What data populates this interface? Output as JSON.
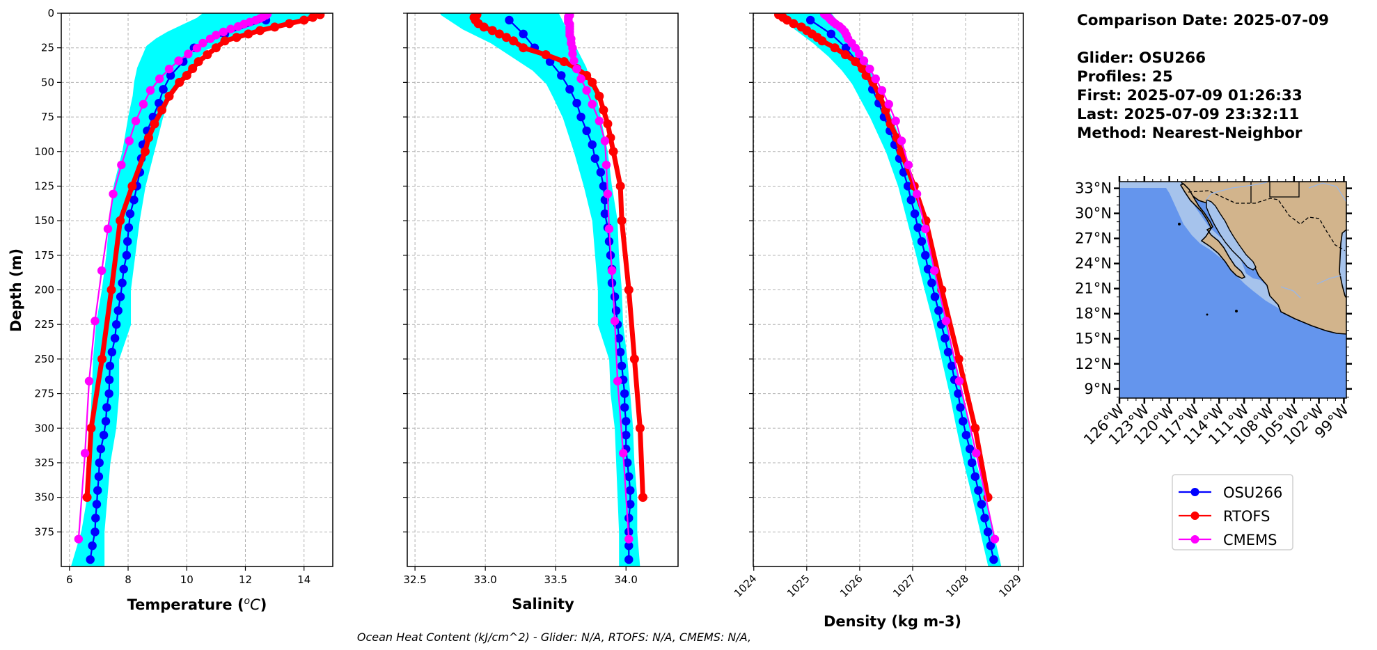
{
  "figure": {
    "footer_text": "Ocean Heat Content (kJ/cm^2) - Glider: N/A,  RTOFS: N/A,  CMEMS: N/A,",
    "info": {
      "comparison_date": "Comparison Date: 2025-07-09",
      "glider": "Glider: OSU266",
      "profiles": "Profiles: 25",
      "first": "First: 2025-07-09 01:26:33",
      "last": "Last: 2025-07-09 23:32:11",
      "method": "Method: Nearest-Neighbor"
    },
    "map": {
      "lat_labels": [
        "33°N",
        "30°N",
        "27°N",
        "24°N",
        "21°N",
        "18°N",
        "15°N",
        "12°N",
        "9°N"
      ],
      "lat_values": [
        33,
        30,
        27,
        24,
        21,
        18,
        15,
        12,
        9
      ],
      "lon_labels": [
        "126°W",
        "123°W",
        "120°W",
        "117°W",
        "114°W",
        "111°W",
        "108°W",
        "105°W",
        "102°W",
        "99°W"
      ],
      "lon_values": [
        -126,
        -123,
        -120,
        -117,
        -114,
        -111,
        -108,
        -105,
        -102,
        -99
      ],
      "extent": {
        "lon_min": -126.0,
        "lon_max": -98.7,
        "lat_min": 7.9,
        "lat_max": 33.8
      },
      "colors": {
        "ocean": "#6495ed",
        "shelf": "#a6c3ec",
        "land": "#d2b48c",
        "coast": "#000000",
        "border": "#000000",
        "river": "#9ab7e6"
      }
    },
    "legend": {
      "position": "below map",
      "entries": [
        {
          "label": "OSU266",
          "color": "#0000ff"
        },
        {
          "label": "RTOFS",
          "color": "#ff0000"
        },
        {
          "label": "CMEMS",
          "color": "#ff00ff"
        }
      ]
    }
  },
  "chart_data": [
    {
      "type": "line",
      "id": "temperature",
      "title": "",
      "xlabel_main": "Temperature (",
      "xlabel_unit_sup": "o",
      "xlabel_unit": "C",
      "xlabel_close": ")",
      "ylabel": "Depth (m)",
      "xlim": [
        5.72,
        14.98
      ],
      "ylim": [
        400,
        0
      ],
      "xticks": [
        6,
        8,
        10,
        12,
        14
      ],
      "xtick_labels": [
        "6",
        "8",
        "10",
        "12",
        "14"
      ],
      "yticks": [
        0,
        25,
        50,
        75,
        100,
        125,
        150,
        175,
        200,
        225,
        250,
        275,
        300,
        325,
        350,
        375
      ],
      "ytick_labels": [
        "0",
        "25",
        "50",
        "75",
        "100",
        "125",
        "150",
        "175",
        "200",
        "225",
        "250",
        "275",
        "300",
        "325",
        "350",
        "375"
      ],
      "grid": true,
      "glider_profiles_envelope": {
        "name": "OSU266 individual profiles",
        "color": "#00ffff",
        "depth": [
          0,
          5,
          10,
          15,
          20,
          25,
          30,
          35,
          40,
          45,
          50,
          60,
          75,
          100,
          125,
          150,
          175,
          200,
          225,
          250,
          275,
          300,
          325,
          350,
          375,
          400
        ],
        "min": [
          10.7,
          10.4,
          9.9,
          9.4,
          9.0,
          8.7,
          8.6,
          8.5,
          8.4,
          8.35,
          8.3,
          8.25,
          8.1,
          7.9,
          7.6,
          7.45,
          7.35,
          7.2,
          7.0,
          6.9,
          6.85,
          6.8,
          6.75,
          6.7,
          6.5,
          6.15
        ],
        "max": [
          14.2,
          13.4,
          12.8,
          12.0,
          11.2,
          10.6,
          10.4,
          10.2,
          10.1,
          9.9,
          9.6,
          9.35,
          9.1,
          8.8,
          8.5,
          8.3,
          8.15,
          8.0,
          8.0,
          7.6,
          7.6,
          7.5,
          7.3,
          7.2,
          7.1,
          7.1
        ]
      },
      "series": [
        {
          "name": "OSU266",
          "color": "#0000ff",
          "depth": [
            5,
            15,
            25,
            35,
            45,
            55,
            65,
            75,
            85,
            95,
            105,
            115,
            125,
            135,
            145,
            155,
            165,
            175,
            185,
            195,
            205,
            215,
            225,
            235,
            245,
            255,
            265,
            275,
            285,
            295,
            305,
            315,
            325,
            335,
            345,
            355,
            365,
            375,
            385,
            395
          ],
          "values": [
            12.7,
            11.3,
            10.25,
            9.88,
            9.45,
            9.2,
            9.05,
            8.85,
            8.65,
            8.5,
            8.45,
            8.4,
            8.3,
            8.2,
            8.07,
            8.02,
            7.98,
            7.95,
            7.85,
            7.8,
            7.74,
            7.66,
            7.6,
            7.55,
            7.45,
            7.38,
            7.36,
            7.35,
            7.27,
            7.24,
            7.17,
            7.07,
            7.02,
            7.0,
            6.96,
            6.93,
            6.89,
            6.87,
            6.78,
            6.71
          ]
        },
        {
          "name": "RTOFS",
          "color": "#ff0000",
          "depth": [
            1,
            3,
            5,
            7.5,
            10,
            12.5,
            15,
            17.5,
            20,
            25,
            30,
            35,
            40,
            45,
            50,
            60,
            70,
            80,
            90,
            100,
            125,
            150,
            200,
            250,
            300,
            350
          ],
          "values": [
            14.55,
            14.3,
            14.0,
            13.5,
            13.0,
            12.5,
            12.1,
            11.7,
            11.3,
            11.0,
            10.7,
            10.4,
            10.2,
            10.0,
            9.75,
            9.4,
            9.15,
            8.9,
            8.7,
            8.58,
            8.14,
            7.73,
            7.43,
            7.11,
            6.74,
            6.6
          ]
        },
        {
          "name": "CMEMS",
          "color": "#ff00ff",
          "depth": [
            0.5,
            1.5,
            2.6,
            3.8,
            5.1,
            6.4,
            7.9,
            9.6,
            11.4,
            13.5,
            15.8,
            18.5,
            21.6,
            25.2,
            29.4,
            34.4,
            40.3,
            47.4,
            55.8,
            65.8,
            77.9,
            92.3,
            109.7,
            130.7,
            155.9,
            186.1,
            222.5,
            266.0,
            318.1,
            380.2
          ],
          "values": [
            12.75,
            12.7,
            12.6,
            12.5,
            12.35,
            12.15,
            11.95,
            11.75,
            11.5,
            11.25,
            11.0,
            10.8,
            10.55,
            10.35,
            10.05,
            9.72,
            9.4,
            9.07,
            8.76,
            8.52,
            8.26,
            8.04,
            7.77,
            7.49,
            7.31,
            7.1,
            6.87,
            6.67,
            6.53,
            6.31
          ]
        }
      ]
    },
    {
      "type": "line",
      "id": "salinity",
      "title": "",
      "xlabel": "Salinity",
      "ylabel": "",
      "xlim": [
        32.445,
        34.37
      ],
      "ylim": [
        400,
        0
      ],
      "xticks": [
        32.5,
        33.0,
        33.5,
        34.0
      ],
      "xtick_labels": [
        "32.5",
        "33.0",
        "33.5",
        "34.0"
      ],
      "yticks": [
        0,
        25,
        50,
        75,
        100,
        125,
        150,
        175,
        200,
        225,
        250,
        275,
        300,
        325,
        350,
        375
      ],
      "grid": true,
      "glider_profiles_envelope": {
        "name": "OSU266 individual profiles",
        "color": "#00ffff",
        "depth": [
          0,
          10,
          20,
          30,
          40,
          50,
          60,
          75,
          100,
          125,
          150,
          175,
          200,
          225,
          250,
          275,
          300,
          325,
          350,
          375,
          400
        ],
        "min": [
          32.7,
          32.85,
          33.05,
          33.2,
          33.35,
          33.45,
          33.5,
          33.57,
          33.65,
          33.72,
          33.78,
          33.8,
          33.82,
          33.82,
          33.9,
          33.91,
          33.94,
          33.95,
          33.96,
          33.97,
          33.97
        ],
        "max": [
          33.5,
          33.55,
          33.6,
          33.65,
          33.7,
          33.73,
          33.77,
          33.8,
          33.85,
          33.88,
          33.92,
          33.93,
          33.95,
          33.96,
          33.99,
          34.01,
          34.03,
          34.04,
          34.06,
          34.06,
          34.08
        ]
      },
      "series": [
        {
          "name": "OSU266",
          "color": "#0000ff",
          "depth": [
            5,
            15,
            25,
            35,
            45,
            55,
            65,
            75,
            85,
            95,
            105,
            115,
            125,
            135,
            145,
            155,
            165,
            175,
            185,
            195,
            205,
            215,
            225,
            235,
            245,
            255,
            265,
            275,
            285,
            295,
            305,
            315,
            325,
            335,
            345,
            355,
            365,
            375,
            385,
            395
          ],
          "values": [
            33.17,
            33.27,
            33.35,
            33.46,
            33.54,
            33.6,
            33.65,
            33.68,
            33.72,
            33.76,
            33.78,
            33.82,
            33.84,
            33.85,
            33.85,
            33.87,
            33.88,
            33.89,
            33.9,
            33.9,
            33.92,
            33.93,
            33.94,
            33.95,
            33.96,
            33.97,
            33.98,
            33.99,
            33.99,
            34.0,
            34.0,
            34.0,
            34.01,
            34.02,
            34.03,
            34.03,
            34.02,
            34.02,
            34.02,
            34.02
          ]
        },
        {
          "name": "RTOFS",
          "color": "#ff0000",
          "depth": [
            1,
            3,
            5,
            7.5,
            10,
            12.5,
            15,
            17.5,
            20,
            25,
            30,
            35,
            40,
            45,
            50,
            60,
            70,
            80,
            90,
            100,
            125,
            150,
            200,
            250,
            300,
            350
          ],
          "values": [
            32.94,
            32.92,
            32.93,
            32.95,
            32.99,
            33.05,
            33.1,
            33.15,
            33.2,
            33.27,
            33.43,
            33.56,
            33.65,
            33.72,
            33.76,
            33.81,
            33.84,
            33.87,
            33.89,
            33.91,
            33.96,
            33.97,
            34.02,
            34.06,
            34.1,
            34.12
          ]
        },
        {
          "name": "CMEMS",
          "color": "#ff00ff",
          "depth": [
            0.5,
            1.5,
            2.6,
            3.8,
            5.1,
            6.4,
            7.9,
            9.6,
            11.4,
            13.5,
            15.8,
            18.5,
            21.6,
            25.2,
            29.4,
            34.4,
            40.3,
            47.4,
            55.8,
            65.8,
            77.9,
            92.3,
            109.7,
            130.7,
            155.9,
            186.1,
            222.5,
            266.0,
            318.1,
            380.2
          ],
          "values": [
            33.6,
            33.6,
            33.59,
            33.59,
            33.59,
            33.59,
            33.6,
            33.6,
            33.6,
            33.6,
            33.6,
            33.61,
            33.61,
            33.62,
            33.62,
            33.63,
            33.65,
            33.68,
            33.72,
            33.76,
            33.81,
            33.85,
            33.86,
            33.87,
            33.88,
            33.9,
            33.92,
            33.94,
            33.98,
            34.02
          ]
        }
      ]
    },
    {
      "type": "line",
      "id": "density",
      "title": "",
      "xlabel": "Density (kg m-3)",
      "ylabel": "",
      "xlim": [
        1023.99,
        1029.09
      ],
      "ylim": [
        400,
        0
      ],
      "xticks": [
        1024,
        1025,
        1026,
        1027,
        1028,
        1029
      ],
      "xtick_labels": [
        "1024",
        "1025",
        "1026",
        "1027",
        "1028",
        "1029"
      ],
      "yticks": [
        0,
        25,
        50,
        75,
        100,
        125,
        150,
        175,
        200,
        225,
        250,
        275,
        300,
        325,
        350,
        375
      ],
      "grid": true,
      "glider_profiles_envelope": {
        "name": "OSU266 individual profiles",
        "color": "#00ffff",
        "depth": [
          0,
          10,
          20,
          30,
          40,
          50,
          75,
          100,
          125,
          150,
          175,
          200,
          225,
          250,
          275,
          300,
          325,
          350,
          375,
          400
        ],
        "min": [
          1024.55,
          1024.8,
          1025.15,
          1025.45,
          1025.7,
          1025.9,
          1026.25,
          1026.55,
          1026.78,
          1026.95,
          1027.12,
          1027.28,
          1027.45,
          1027.6,
          1027.75,
          1027.88,
          1028.02,
          1028.18,
          1028.33,
          1028.48
        ],
        "max": [
          1025.4,
          1025.6,
          1025.8,
          1026.0,
          1026.15,
          1026.25,
          1026.55,
          1026.8,
          1027.0,
          1027.12,
          1027.28,
          1027.45,
          1027.6,
          1027.75,
          1027.9,
          1028.02,
          1028.15,
          1028.32,
          1028.47,
          1028.62
        ]
      },
      "series": [
        {
          "name": "OSU266",
          "color": "#0000ff",
          "depth": [
            5,
            15,
            25,
            35,
            45,
            55,
            65,
            75,
            85,
            95,
            105,
            115,
            125,
            135,
            145,
            155,
            165,
            175,
            185,
            195,
            205,
            215,
            225,
            235,
            245,
            255,
            265,
            275,
            285,
            295,
            305,
            315,
            325,
            335,
            345,
            355,
            365,
            375,
            385,
            395
          ],
          "values": [
            1025.07,
            1025.46,
            1025.74,
            1025.95,
            1026.12,
            1026.24,
            1026.36,
            1026.46,
            1026.57,
            1026.66,
            1026.75,
            1026.83,
            1026.91,
            1026.97,
            1027.04,
            1027.1,
            1027.17,
            1027.24,
            1027.29,
            1027.36,
            1027.42,
            1027.49,
            1027.54,
            1027.61,
            1027.67,
            1027.74,
            1027.79,
            1027.86,
            1027.9,
            1027.95,
            1028.01,
            1028.08,
            1028.12,
            1028.18,
            1028.24,
            1028.3,
            1028.36,
            1028.42,
            1028.47,
            1028.53
          ]
        },
        {
          "name": "RTOFS",
          "color": "#ff0000",
          "depth": [
            1,
            3,
            5,
            7.5,
            10,
            12.5,
            15,
            17.5,
            20,
            25,
            30,
            35,
            40,
            45,
            50,
            60,
            70,
            80,
            90,
            100,
            125,
            150,
            200,
            250,
            300,
            350
          ],
          "values": [
            1024.47,
            1024.55,
            1024.63,
            1024.75,
            1024.9,
            1025.0,
            1025.1,
            1025.2,
            1025.29,
            1025.53,
            1025.73,
            1025.92,
            1026.05,
            1026.12,
            1026.25,
            1026.38,
            1026.49,
            1026.58,
            1026.7,
            1026.78,
            1027.03,
            1027.25,
            1027.55,
            1027.87,
            1028.18,
            1028.42
          ]
        },
        {
          "name": "CMEMS",
          "color": "#ff00ff",
          "depth": [
            0.5,
            1.5,
            2.6,
            3.8,
            5.1,
            6.4,
            7.9,
            9.6,
            11.4,
            13.5,
            15.8,
            18.5,
            21.6,
            25.2,
            29.4,
            34.4,
            40.3,
            47.4,
            55.8,
            65.8,
            77.9,
            92.3,
            109.7,
            130.7,
            155.9,
            186.1,
            222.5,
            266.0,
            318.1,
            380.2
          ],
          "values": [
            1025.33,
            1025.36,
            1025.4,
            1025.43,
            1025.46,
            1025.5,
            1025.55,
            1025.62,
            1025.67,
            1025.72,
            1025.75,
            1025.78,
            1025.85,
            1025.92,
            1025.99,
            1026.08,
            1026.19,
            1026.3,
            1026.42,
            1026.55,
            1026.68,
            1026.79,
            1026.92,
            1027.08,
            1027.24,
            1027.41,
            1027.63,
            1027.88,
            1028.2,
            1028.55
          ]
        }
      ]
    }
  ]
}
